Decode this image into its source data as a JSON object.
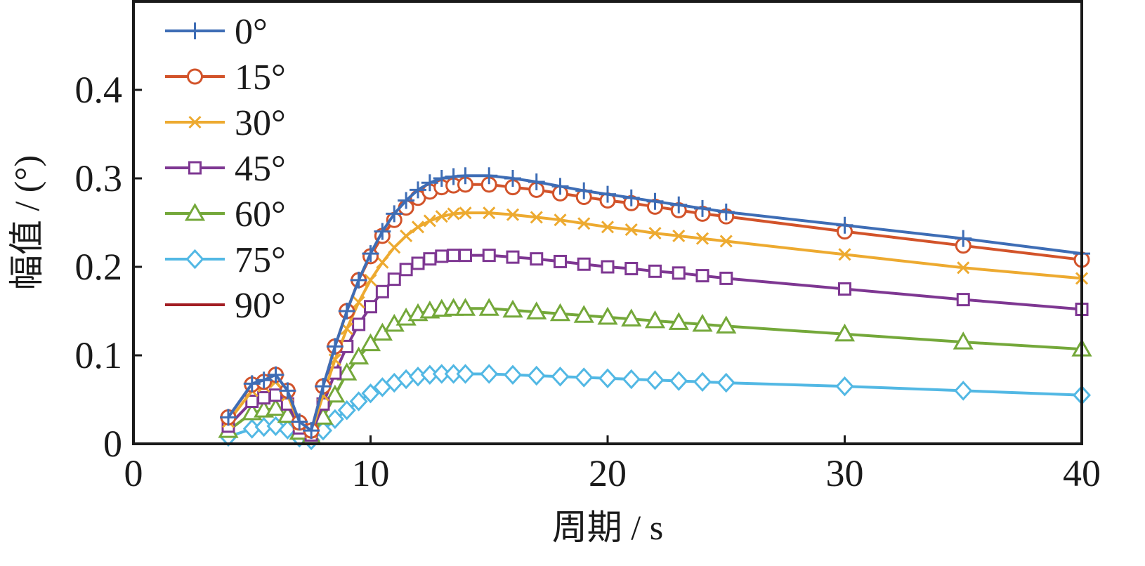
{
  "chart_data": {
    "type": "line",
    "title": "",
    "xlabel": "周期 / s",
    "ylabel": "幅值 / (°)",
    "xlim": [
      0,
      40
    ],
    "ylim": [
      0,
      0.5
    ],
    "xticks": [
      0,
      10,
      20,
      30,
      40
    ],
    "xtick_labels": [
      "0",
      "10",
      "20",
      "30",
      "40"
    ],
    "yticks": [
      0,
      0.1,
      0.2,
      0.3,
      0.4
    ],
    "ytick_labels": [
      "0",
      "0.1",
      "0.2",
      "0.3",
      "0.4"
    ],
    "grid": false,
    "legend_position": "top-left",
    "x": [
      4,
      5,
      5.5,
      6,
      6.5,
      7,
      7.5,
      8,
      8.5,
      9,
      9.5,
      10,
      10.5,
      11,
      11.5,
      12,
      12.5,
      13,
      13.5,
      14,
      15,
      16,
      17,
      18,
      19,
      20,
      21,
      22,
      23,
      24,
      25,
      30,
      35,
      40
    ],
    "series": [
      {
        "name": "0°",
        "color": "#3e6db5",
        "marker": "plus",
        "values": [
          0.03,
          0.068,
          0.072,
          0.078,
          0.06,
          0.025,
          0.015,
          0.065,
          0.11,
          0.15,
          0.185,
          0.215,
          0.24,
          0.26,
          0.275,
          0.287,
          0.295,
          0.3,
          0.302,
          0.303,
          0.303,
          0.3,
          0.296,
          0.291,
          0.286,
          0.282,
          0.278,
          0.274,
          0.27,
          0.266,
          0.262,
          0.247,
          0.232,
          0.215
        ]
      },
      {
        "name": "15°",
        "color": "#d2532a",
        "marker": "circle",
        "values": [
          0.03,
          0.067,
          0.07,
          0.078,
          0.06,
          0.024,
          0.015,
          0.065,
          0.11,
          0.15,
          0.185,
          0.212,
          0.235,
          0.253,
          0.267,
          0.278,
          0.285,
          0.29,
          0.292,
          0.293,
          0.293,
          0.29,
          0.287,
          0.283,
          0.279,
          0.275,
          0.272,
          0.268,
          0.264,
          0.26,
          0.257,
          0.24,
          0.224,
          0.208
        ]
      },
      {
        "name": "30°",
        "color": "#edaa30",
        "marker": "x",
        "values": [
          0.025,
          0.06,
          0.065,
          0.07,
          0.055,
          0.022,
          0.013,
          0.055,
          0.095,
          0.13,
          0.16,
          0.185,
          0.205,
          0.222,
          0.235,
          0.245,
          0.252,
          0.257,
          0.26,
          0.261,
          0.261,
          0.259,
          0.256,
          0.253,
          0.249,
          0.245,
          0.242,
          0.238,
          0.235,
          0.232,
          0.229,
          0.214,
          0.199,
          0.187
        ]
      },
      {
        "name": "45°",
        "color": "#7e3792",
        "marker": "square",
        "values": [
          0.02,
          0.048,
          0.052,
          0.055,
          0.045,
          0.018,
          0.01,
          0.045,
          0.08,
          0.11,
          0.135,
          0.155,
          0.172,
          0.186,
          0.197,
          0.204,
          0.209,
          0.212,
          0.213,
          0.213,
          0.213,
          0.211,
          0.209,
          0.206,
          0.203,
          0.2,
          0.198,
          0.195,
          0.193,
          0.19,
          0.187,
          0.175,
          0.163,
          0.152
        ]
      },
      {
        "name": "60°",
        "color": "#74a83a",
        "marker": "triangle",
        "values": [
          0.015,
          0.035,
          0.038,
          0.04,
          0.032,
          0.013,
          0.008,
          0.03,
          0.055,
          0.08,
          0.098,
          0.113,
          0.125,
          0.135,
          0.142,
          0.147,
          0.15,
          0.152,
          0.153,
          0.153,
          0.153,
          0.151,
          0.149,
          0.147,
          0.145,
          0.143,
          0.141,
          0.139,
          0.137,
          0.135,
          0.133,
          0.124,
          0.115,
          0.107
        ]
      },
      {
        "name": "75°",
        "color": "#52b8e4",
        "marker": "diamond",
        "values": [
          0.008,
          0.017,
          0.019,
          0.02,
          0.016,
          0.007,
          0.004,
          0.015,
          0.028,
          0.038,
          0.048,
          0.057,
          0.064,
          0.069,
          0.073,
          0.076,
          0.078,
          0.079,
          0.079,
          0.079,
          0.079,
          0.078,
          0.077,
          0.076,
          0.075,
          0.074,
          0.073,
          0.072,
          0.071,
          0.07,
          0.069,
          0.065,
          0.06,
          0.055
        ]
      },
      {
        "name": "90°",
        "color": "#a21d23",
        "marker": "none",
        "values": [
          0,
          0,
          0,
          0,
          0,
          0,
          0,
          0,
          0,
          0,
          0,
          0,
          0,
          0,
          0,
          0,
          0,
          0,
          0,
          0,
          0,
          0,
          0,
          0,
          0,
          0,
          0,
          0,
          0,
          0,
          0,
          0,
          0,
          0
        ]
      }
    ]
  }
}
